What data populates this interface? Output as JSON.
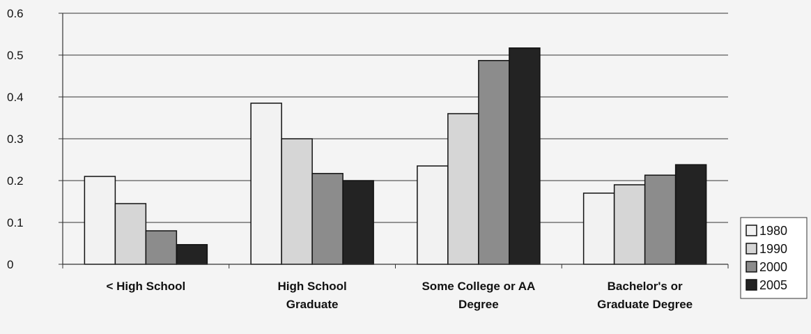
{
  "chart_data": {
    "type": "bar",
    "title": "",
    "xlabel": "",
    "ylabel": "",
    "ylim": [
      0,
      0.6
    ],
    "yticks": [
      0,
      0.1,
      0.2,
      0.3,
      0.4,
      0.5,
      0.6
    ],
    "ytick_labels": [
      "0",
      "0.1",
      "0.2",
      "0.3",
      "0.4",
      "0.5",
      "0.6"
    ],
    "grid": true,
    "legend_position": "bottom-right",
    "categories": [
      [
        "< High School"
      ],
      [
        "High School",
        "Graduate"
      ],
      [
        "Some College or AA",
        "Degree"
      ],
      [
        "Bachelor's or",
        "Graduate Degree"
      ]
    ],
    "series": [
      {
        "name": "1980",
        "color": "#f2f2f2",
        "values": [
          0.21,
          0.385,
          0.235,
          0.17
        ]
      },
      {
        "name": "1990",
        "color": "#d6d6d6",
        "values": [
          0.145,
          0.3,
          0.36,
          0.19
        ]
      },
      {
        "name": "2000",
        "color": "#8c8c8c",
        "values": [
          0.08,
          0.217,
          0.487,
          0.213
        ]
      },
      {
        "name": "2005",
        "color": "#232323",
        "values": [
          0.047,
          0.2,
          0.517,
          0.238
        ]
      }
    ]
  }
}
